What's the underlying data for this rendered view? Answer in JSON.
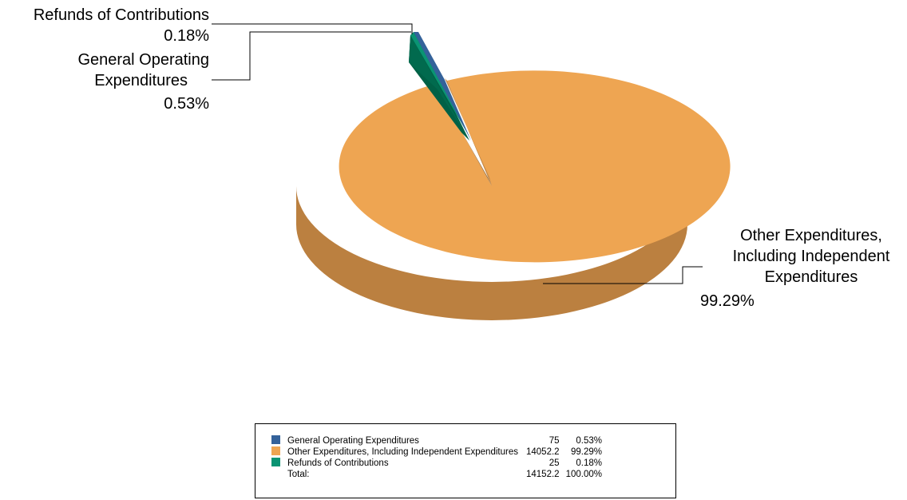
{
  "chart_data": {
    "type": "pie",
    "title": "",
    "slices": [
      {
        "label": "General Operating Expenditures",
        "value": 75,
        "percent": "0.53%",
        "color": "#34629a",
        "side_color": "#006146"
      },
      {
        "label": "Other Expenditures, Including Independent Expenditures",
        "value": 14052.2,
        "percent": "99.29%",
        "color": "#eea552",
        "side_color": "#bb8040"
      },
      {
        "label": "Refunds of Contributions",
        "value": 25,
        "percent": "0.18%",
        "color": "#0a9473",
        "side_color": "#006a50"
      }
    ],
    "total": {
      "label": "Total:",
      "value": "14152.2",
      "percent": "100.00%"
    },
    "callouts": {
      "refunds": {
        "lines": [
          "Refunds of Contributions"
        ],
        "percent": "0.18%"
      },
      "general": {
        "lines": [
          "General Operating",
          "Expenditures"
        ],
        "percent": "0.53%"
      },
      "other": {
        "lines": [
          "Other Expenditures,",
          "Including Independent",
          "Expenditures"
        ],
        "percent": "99.29%"
      }
    },
    "legend": {
      "rows": [
        {
          "label": "General Operating Expenditures",
          "value": "75",
          "percent": "0.53%",
          "color": "#34629a"
        },
        {
          "label": "Other Expenditures, Including Independent Expenditures",
          "value": "14052.2",
          "percent": "99.29%",
          "color": "#eea552"
        },
        {
          "label": "Refunds of Contributions",
          "value": "25",
          "percent": "0.18%",
          "color": "#0a9473"
        }
      ]
    }
  }
}
